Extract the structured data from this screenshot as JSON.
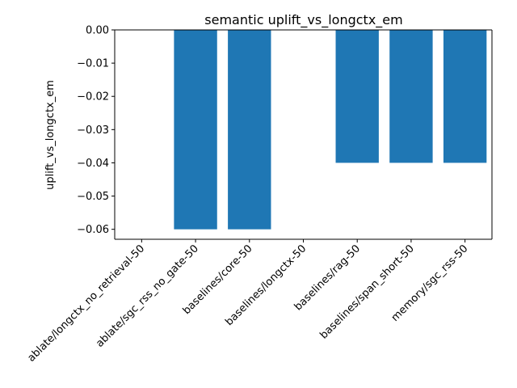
{
  "chart_data": {
    "type": "bar",
    "title": "semantic uplift_vs_longctx_em",
    "xlabel": "",
    "ylabel": "uplift_vs_longctx_em",
    "categories": [
      "ablate/longctx_no_retrieval-50",
      "ablate/sgc_rss_no_gate-50",
      "baselines/core-50",
      "baselines/longctx-50",
      "baselines/rag-50",
      "baselines/span_short-50",
      "memory/sgc_rss-50"
    ],
    "values": [
      0.0,
      -0.06,
      -0.06,
      0.0,
      -0.04,
      -0.04,
      -0.04
    ],
    "ylim": [
      -0.063,
      0.0
    ],
    "yticks": [
      0.0,
      -0.01,
      -0.02,
      -0.03,
      -0.04,
      -0.05,
      -0.06
    ],
    "ytick_labels": [
      "0.00",
      "−0.01",
      "−0.02",
      "−0.03",
      "−0.04",
      "−0.05",
      "−0.06"
    ],
    "bar_color": "#1f77b4",
    "grid": false,
    "legend": "none"
  }
}
